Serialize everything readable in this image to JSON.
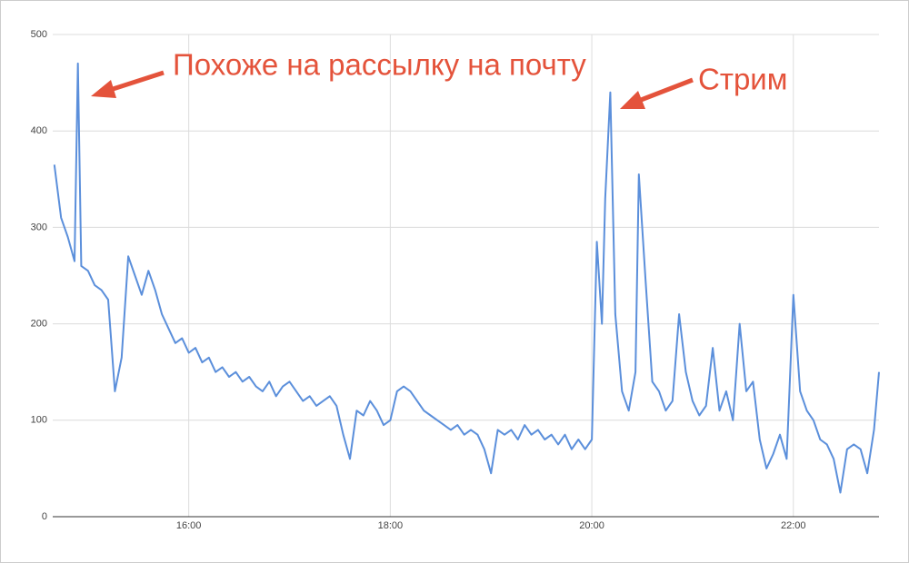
{
  "chart_data": {
    "type": "line",
    "annotations": [
      {
        "text": "Похоже на рассылку на почту"
      },
      {
        "text": "Стрим"
      }
    ],
    "x": [
      "14:40",
      "14:44",
      "14:48",
      "14:52",
      "14:54",
      "14:56",
      "15:00",
      "15:04",
      "15:08",
      "15:12",
      "15:16",
      "15:20",
      "15:24",
      "15:28",
      "15:32",
      "15:36",
      "15:40",
      "15:44",
      "15:48",
      "15:52",
      "15:56",
      "16:00",
      "16:04",
      "16:08",
      "16:12",
      "16:16",
      "16:20",
      "16:24",
      "16:28",
      "16:32",
      "16:36",
      "16:40",
      "16:44",
      "16:48",
      "16:52",
      "16:56",
      "17:00",
      "17:04",
      "17:08",
      "17:12",
      "17:16",
      "17:20",
      "17:24",
      "17:28",
      "17:32",
      "17:36",
      "17:40",
      "17:44",
      "17:48",
      "17:52",
      "17:56",
      "18:00",
      "18:04",
      "18:08",
      "18:12",
      "18:16",
      "18:20",
      "18:24",
      "18:28",
      "18:32",
      "18:36",
      "18:40",
      "18:44",
      "18:48",
      "18:52",
      "18:56",
      "19:00",
      "19:04",
      "19:08",
      "19:12",
      "19:16",
      "19:20",
      "19:24",
      "19:28",
      "19:32",
      "19:36",
      "19:40",
      "19:44",
      "19:48",
      "19:52",
      "19:56",
      "20:00",
      "20:03",
      "20:06",
      "20:08",
      "20:11",
      "20:14",
      "20:18",
      "20:22",
      "20:26",
      "20:28",
      "20:32",
      "20:36",
      "20:40",
      "20:44",
      "20:48",
      "20:52",
      "20:56",
      "21:00",
      "21:04",
      "21:08",
      "21:12",
      "21:16",
      "21:20",
      "21:24",
      "21:28",
      "21:32",
      "21:36",
      "21:40",
      "21:44",
      "21:48",
      "21:52",
      "21:56",
      "22:00",
      "22:04",
      "22:08",
      "22:12",
      "22:16",
      "22:20",
      "22:24",
      "22:28",
      "22:32",
      "22:36",
      "22:40",
      "22:44",
      "22:48",
      "22:51"
    ],
    "values": [
      365,
      310,
      290,
      265,
      470,
      260,
      255,
      240,
      235,
      225,
      130,
      165,
      270,
      250,
      230,
      255,
      235,
      210,
      195,
      180,
      185,
      170,
      175,
      160,
      165,
      150,
      155,
      145,
      150,
      140,
      145,
      135,
      130,
      140,
      125,
      135,
      140,
      130,
      120,
      125,
      115,
      120,
      125,
      115,
      85,
      60,
      110,
      105,
      120,
      110,
      95,
      100,
      130,
      135,
      130,
      120,
      110,
      105,
      100,
      95,
      90,
      95,
      85,
      90,
      85,
      70,
      45,
      90,
      85,
      90,
      80,
      95,
      85,
      90,
      80,
      85,
      75,
      85,
      70,
      80,
      70,
      80,
      285,
      200,
      330,
      440,
      210,
      130,
      110,
      150,
      355,
      245,
      140,
      130,
      110,
      120,
      210,
      150,
      120,
      105,
      115,
      175,
      110,
      130,
      100,
      200,
      130,
      140,
      80,
      50,
      65,
      85,
      60,
      230,
      130,
      110,
      100,
      80,
      75,
      60,
      25,
      70,
      75,
      70,
      45,
      90,
      150
    ],
    "color": "#5b8fdb",
    "xlim": [
      "14:39",
      "22:51"
    ],
    "xticks": [
      "16:00",
      "18:00",
      "20:00",
      "22:00"
    ],
    "ylim": [
      0,
      500
    ],
    "yticks": [
      0,
      100,
      200,
      300,
      400,
      500
    ],
    "grid": true
  }
}
